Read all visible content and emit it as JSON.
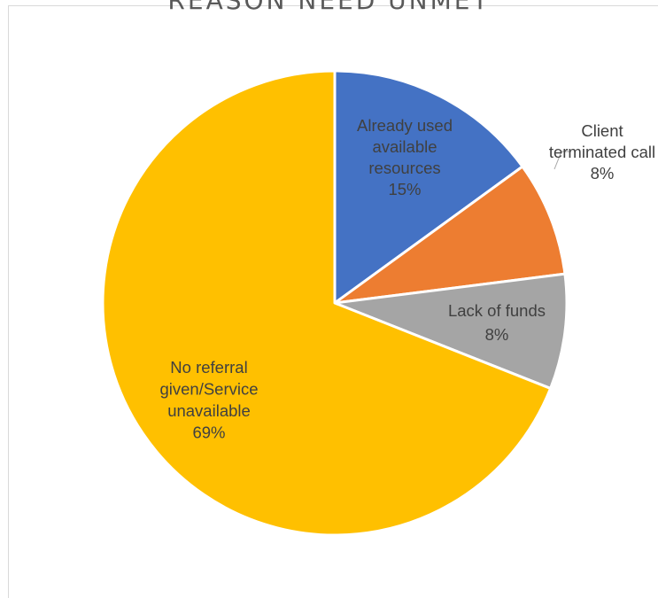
{
  "chart_data": {
    "type": "pie",
    "title": "REASON NEED UNMET",
    "start_angle_deg": 0,
    "direction": "clockwise",
    "slices": [
      {
        "label": [
          "Already used",
          "available",
          "resources"
        ],
        "percent_label": "15%",
        "value": 15,
        "color": "#4472C4",
        "label_color": "#404040"
      },
      {
        "label": [
          "Client",
          "terminated call"
        ],
        "percent_label": "8%",
        "value": 8,
        "color": "#ED7D31",
        "label_color": "#404040"
      },
      {
        "label": [
          "Lack of funds"
        ],
        "percent_label": "8%",
        "value": 8,
        "color": "#A5A5A5",
        "label_color": "#404040"
      },
      {
        "label": [
          "No referral",
          "given/Service",
          "unavailable"
        ],
        "percent_label": "69%",
        "value": 69,
        "color": "#FFC000",
        "label_color": "#404040"
      }
    ]
  }
}
